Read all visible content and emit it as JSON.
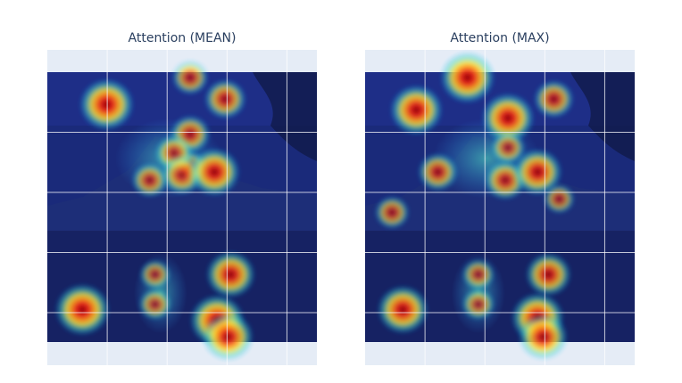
{
  "chart_data": [
    {
      "type": "heatmap",
      "title": "Attention (MEAN)",
      "xlabel": "",
      "ylabel": "",
      "grid": true,
      "colorscale": "jet",
      "background_image": "mountain-lake-photo",
      "hotspots": [
        {
          "x": 0.22,
          "y": 0.12,
          "intensity": 0.95
        },
        {
          "x": 0.53,
          "y": 0.02,
          "intensity": 0.45
        },
        {
          "x": 0.53,
          "y": 0.23,
          "intensity": 0.55
        },
        {
          "x": 0.53,
          "y": 0.35,
          "intensity": 0.35
        },
        {
          "x": 0.66,
          "y": 0.1,
          "intensity": 0.6
        },
        {
          "x": 0.47,
          "y": 0.3,
          "intensity": 0.5
        },
        {
          "x": 0.38,
          "y": 0.4,
          "intensity": 0.45
        },
        {
          "x": 0.5,
          "y": 0.38,
          "intensity": 0.6
        },
        {
          "x": 0.62,
          "y": 0.37,
          "intensity": 0.85
        },
        {
          "x": 0.4,
          "y": 0.75,
          "intensity": 0.3
        },
        {
          "x": 0.4,
          "y": 0.86,
          "intensity": 0.35
        },
        {
          "x": 0.13,
          "y": 0.88,
          "intensity": 0.95
        },
        {
          "x": 0.68,
          "y": 0.75,
          "intensity": 0.8
        },
        {
          "x": 0.63,
          "y": 0.92,
          "intensity": 0.95
        },
        {
          "x": 0.67,
          "y": 0.98,
          "intensity": 0.85
        }
      ]
    },
    {
      "type": "heatmap",
      "title": "Attention (MAX)",
      "xlabel": "",
      "ylabel": "",
      "grid": true,
      "colorscale": "jet",
      "background_image": "mountain-lake-photo",
      "hotspots": [
        {
          "x": 0.38,
          "y": 0.02,
          "intensity": 0.95
        },
        {
          "x": 0.19,
          "y": 0.14,
          "intensity": 0.9
        },
        {
          "x": 0.53,
          "y": 0.17,
          "intensity": 0.9
        },
        {
          "x": 0.53,
          "y": 0.28,
          "intensity": 0.4
        },
        {
          "x": 0.52,
          "y": 0.4,
          "intensity": 0.6
        },
        {
          "x": 0.64,
          "y": 0.37,
          "intensity": 0.8
        },
        {
          "x": 0.7,
          "y": 0.1,
          "intensity": 0.55
        },
        {
          "x": 0.27,
          "y": 0.37,
          "intensity": 0.55
        },
        {
          "x": 0.1,
          "y": 0.52,
          "intensity": 0.4
        },
        {
          "x": 0.42,
          "y": 0.75,
          "intensity": 0.35
        },
        {
          "x": 0.42,
          "y": 0.86,
          "intensity": 0.35
        },
        {
          "x": 0.14,
          "y": 0.88,
          "intensity": 0.85
        },
        {
          "x": 0.68,
          "y": 0.75,
          "intensity": 0.7
        },
        {
          "x": 0.64,
          "y": 0.91,
          "intensity": 0.9
        },
        {
          "x": 0.66,
          "y": 0.98,
          "intensity": 0.8
        },
        {
          "x": 0.72,
          "y": 0.47,
          "intensity": 0.3
        }
      ]
    }
  ]
}
